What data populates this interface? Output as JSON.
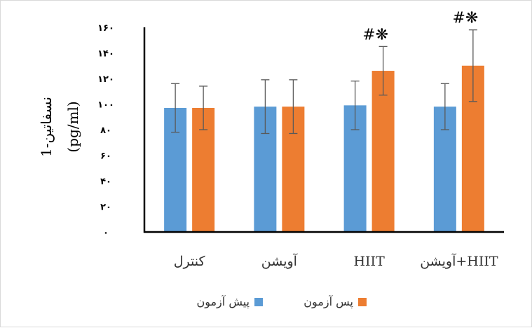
{
  "chart_data": {
    "type": "bar",
    "categories": [
      "کنترل",
      "آویشن",
      "HIIT",
      "آویشن+HIIT"
    ],
    "series": [
      {
        "name": "پیش آزمون",
        "color": "#5B9BD5",
        "values": [
          97,
          98,
          99,
          98
        ],
        "errors": [
          19,
          21,
          19,
          18
        ]
      },
      {
        "name": "پس آزمون",
        "color": "#ED7D31",
        "values": [
          97,
          98,
          126,
          130
        ],
        "errors": [
          17,
          21,
          19,
          28
        ]
      }
    ],
    "annotations": [
      "#❋",
      "#❋"
    ],
    "annotation_categories": [
      2,
      3
    ],
    "ylabel": [
      "1-نسفاتین",
      "(pg/ml)"
    ],
    "ylim": [
      0,
      160
    ],
    "yticks": [
      0,
      20,
      40,
      60,
      80,
      100,
      120,
      140,
      160
    ],
    "ytick_labels": [
      "۰",
      "۲۰",
      "۴۰",
      "۶۰",
      "۸۰",
      "۱۰۰",
      "۱۲۰",
      "۱۴۰",
      "۱۶۰"
    ],
    "legend_position": "bottom",
    "grid": false
  }
}
